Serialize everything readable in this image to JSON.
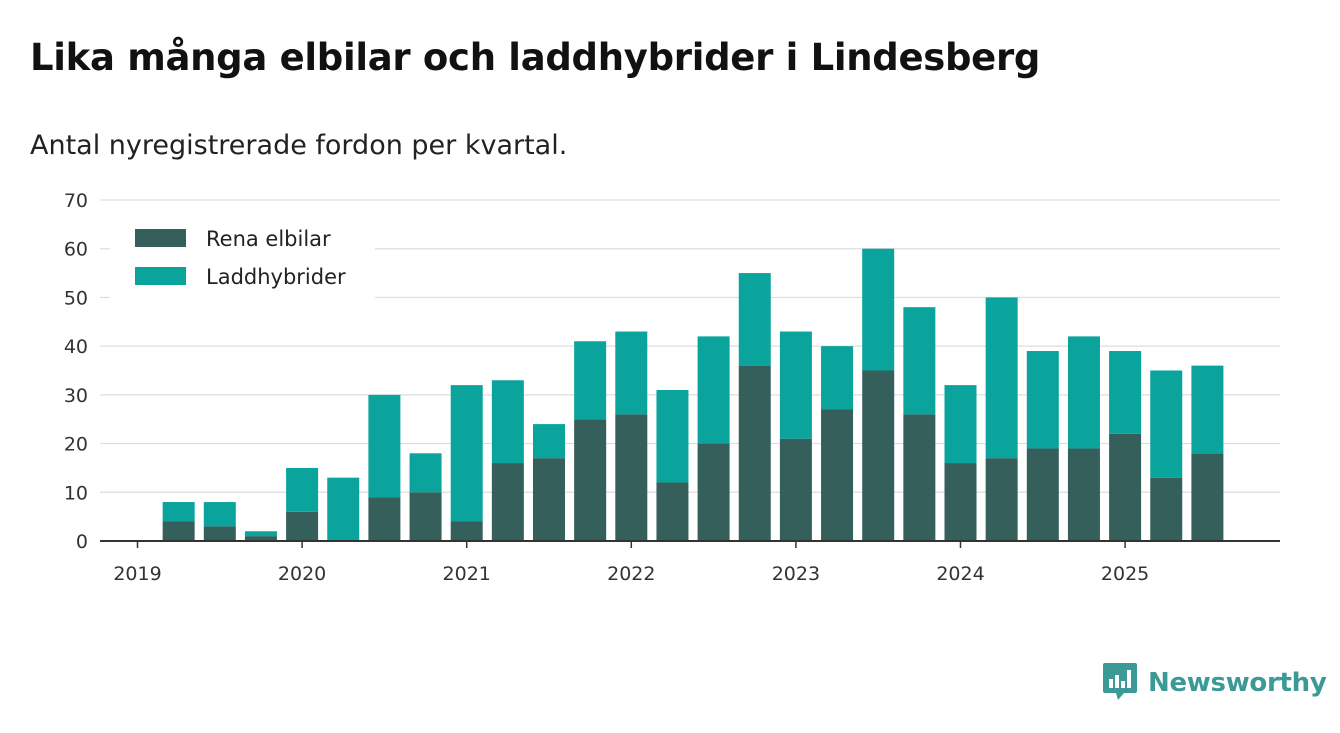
{
  "title": "Lika många elbilar och laddhybrider i Lindesberg",
  "subtitle": "Antal nyregistrerade fordon per kvartal.",
  "brand": {
    "name": "Newsworthy",
    "icon": "newsworthy-logo-icon"
  },
  "colors": {
    "elbilar": "#355f5b",
    "laddhybrider": "#0aa49c",
    "grid": "#dddddd",
    "axis": "#333333",
    "brand": "#3b9a95"
  },
  "chart_data": {
    "type": "bar",
    "stacked": true,
    "title": "Lika många elbilar och laddhybrider i Lindesberg",
    "subtitle": "Antal nyregistrerade fordon per kvartal.",
    "xlabel": "",
    "ylabel": "",
    "ylim": [
      0,
      70
    ],
    "yticks": [
      "0",
      "10",
      "20",
      "30",
      "40",
      "50",
      "60",
      "70"
    ],
    "xticks": [
      "2019",
      "2020",
      "2021",
      "2022",
      "2023",
      "2024",
      "2025"
    ],
    "legend_position": "top-left",
    "categories": [
      "2019 Q1",
      "2019 Q2",
      "2019 Q3",
      "2019 Q4",
      "2020 Q1",
      "2020 Q2",
      "2020 Q3",
      "2020 Q4",
      "2021 Q1",
      "2021 Q2",
      "2021 Q3",
      "2021 Q4",
      "2022 Q1",
      "2022 Q2",
      "2022 Q3",
      "2022 Q4",
      "2023 Q1",
      "2023 Q2",
      "2023 Q3",
      "2023 Q4",
      "2024 Q1",
      "2024 Q2",
      "2024 Q3",
      "2024 Q4",
      "2025 Q1",
      "2025 Q2",
      "2025 Q3"
    ],
    "series": [
      {
        "name": "Rena elbilar",
        "values": [
          0,
          4,
          3,
          1,
          6,
          0,
          9,
          10,
          4,
          16,
          17,
          25,
          26,
          12,
          20,
          36,
          21,
          27,
          35,
          26,
          16,
          17,
          19,
          19,
          22,
          13,
          18
        ]
      },
      {
        "name": "Laddhybrider",
        "values": [
          0,
          4,
          5,
          1,
          9,
          13,
          21,
          8,
          28,
          17,
          7,
          16,
          17,
          19,
          22,
          19,
          22,
          13,
          25,
          22,
          16,
          33,
          20,
          23,
          17,
          22,
          18
        ]
      }
    ]
  }
}
